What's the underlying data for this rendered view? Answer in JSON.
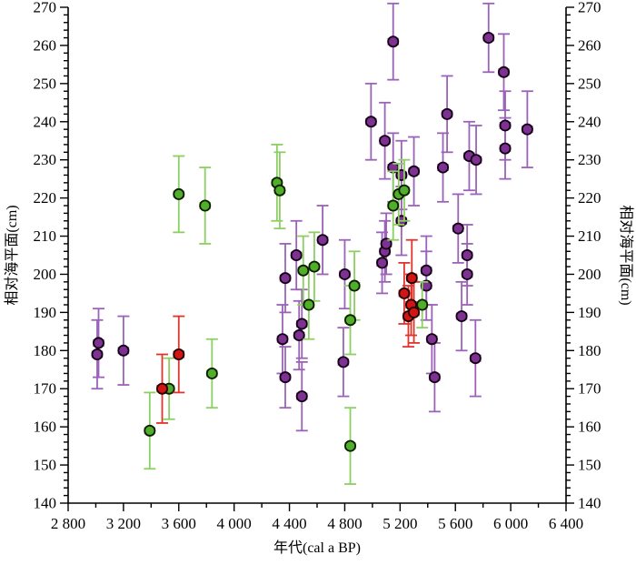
{
  "figure": {
    "background": "#ffffff",
    "axis_color": "#000000"
  },
  "chart_data": {
    "type": "scatter",
    "title": "",
    "xlabel": "年代(cal a BP)",
    "ylabel_left": "相对海平面(cm)",
    "ylabel_right": "相对海平面(cm)",
    "xlim": [
      2800,
      6400
    ],
    "ylim": [
      140,
      270
    ],
    "grid": false,
    "legend": null,
    "x_major_step": 400,
    "x_minor_step": 200,
    "y_major_step": 10,
    "y_minor_step": 2,
    "x_tick_labels": [
      "2 800",
      "3 200",
      "3 600",
      "4 000",
      "4 400",
      "4 800",
      "5 200",
      "5 600",
      "6 000",
      "6 400"
    ],
    "y_tick_labels": [
      "140",
      "150",
      "160",
      "170",
      "180",
      "190",
      "200",
      "210",
      "220",
      "230",
      "240",
      "250",
      "260",
      "270"
    ],
    "x_error": 35,
    "series": [
      {
        "name": "purple",
        "marker_color": "#7d3191",
        "marker_edge": "#140014",
        "bar_color": "#9b63b8",
        "points": [
          [
            3010,
            179,
            9
          ],
          [
            3020,
            182,
            9
          ],
          [
            3200,
            180,
            9
          ],
          [
            4350,
            183,
            9
          ],
          [
            4370,
            173,
            8
          ],
          [
            4370,
            199,
            9
          ],
          [
            4450,
            205,
            9
          ],
          [
            4470,
            184,
            9
          ],
          [
            4490,
            168,
            9
          ],
          [
            4490,
            187,
            9
          ],
          [
            4640,
            209,
            9
          ],
          [
            4790,
            177,
            9
          ],
          [
            4800,
            200,
            9
          ],
          [
            4990,
            240,
            10
          ],
          [
            5070,
            203,
            8
          ],
          [
            5090,
            206,
            8
          ],
          [
            5090,
            235,
            10
          ],
          [
            5100,
            208,
            8
          ],
          [
            5150,
            228,
            9
          ],
          [
            5150,
            261,
            10
          ],
          [
            5210,
            214,
            9
          ],
          [
            5210,
            226,
            9
          ],
          [
            5300,
            227,
            9
          ],
          [
            5390,
            197,
            9
          ],
          [
            5390,
            201,
            9
          ],
          [
            5430,
            183,
            9
          ],
          [
            5450,
            173,
            9
          ],
          [
            5510,
            228,
            9
          ],
          [
            5540,
            242,
            10
          ],
          [
            5620,
            212,
            9
          ],
          [
            5645,
            189,
            9
          ],
          [
            5685,
            200,
            8
          ],
          [
            5685,
            205,
            8
          ],
          [
            5700,
            231,
            9
          ],
          [
            5745,
            178,
            10
          ],
          [
            5750,
            230,
            9
          ],
          [
            5840,
            262,
            9
          ],
          [
            5950,
            253,
            10
          ],
          [
            5960,
            233,
            8
          ],
          [
            5960,
            239,
            9
          ],
          [
            6120,
            238,
            10
          ]
        ]
      },
      {
        "name": "green",
        "marker_color": "#4fae2a",
        "marker_edge": "#0d1a00",
        "bar_color": "#8ccf63",
        "points": [
          [
            3390,
            159,
            10
          ],
          [
            3530,
            170,
            8
          ],
          [
            3600,
            221,
            10
          ],
          [
            3790,
            218,
            10
          ],
          [
            3840,
            174,
            9
          ],
          [
            4310,
            224,
            10
          ],
          [
            4330,
            222,
            10
          ],
          [
            4500,
            201,
            9
          ],
          [
            4540,
            192,
            9
          ],
          [
            4580,
            202,
            9
          ],
          [
            4840,
            155,
            10
          ],
          [
            4840,
            188,
            9
          ],
          [
            4870,
            197,
            9
          ],
          [
            5150,
            218,
            9
          ],
          [
            5190,
            221,
            8
          ],
          [
            5230,
            222,
            8
          ],
          [
            5360,
            192,
            6
          ]
        ]
      },
      {
        "name": "red",
        "marker_color": "#d31414",
        "marker_edge": "#1a0000",
        "bar_color": "#e0352c",
        "points": [
          [
            3480,
            170,
            9
          ],
          [
            3600,
            179,
            10
          ],
          [
            5230,
            195,
            8
          ],
          [
            5260,
            189,
            8
          ],
          [
            5280,
            192,
            8
          ],
          [
            5285,
            199,
            10
          ],
          [
            5300,
            190,
            8
          ]
        ]
      }
    ]
  }
}
